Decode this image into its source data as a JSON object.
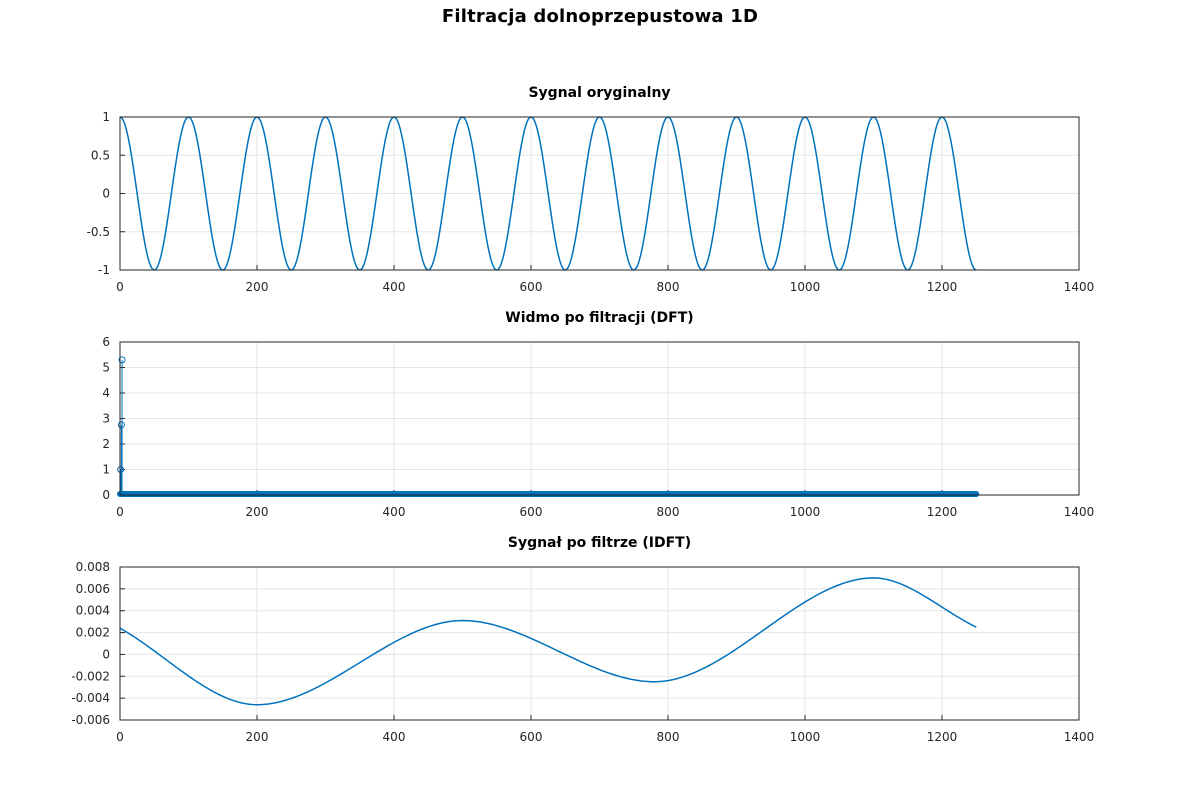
{
  "figure_title": "Filtracja dolnoprzepustowa 1D",
  "colors": {
    "line": "#0072bd",
    "grid": "#e5e5e5",
    "axes": "#262626",
    "background": "#ffffff"
  },
  "chart_data": [
    {
      "type": "line",
      "title": "Sygnal oryginalny",
      "xlabel": "",
      "ylabel": "",
      "xlim": [
        0,
        1400
      ],
      "ylim": [
        -1,
        1
      ],
      "xticks": [
        "0",
        "200",
        "400",
        "600",
        "800",
        "1000",
        "1200",
        "1400"
      ],
      "yticks": [
        "-1",
        "-0.5",
        "0",
        "0.5",
        "1"
      ],
      "grid": true,
      "series": [
        {
          "function": "cos(2*pi*n/100)",
          "x_start": 0,
          "x_end": 1250,
          "step": 1,
          "period": 100,
          "amplitude": 1
        }
      ]
    },
    {
      "type": "stem",
      "title": "Widmo po filtracji (DFT)",
      "xlabel": "",
      "ylabel": "",
      "xlim": [
        0,
        1400
      ],
      "ylim": [
        0,
        6
      ],
      "xticks": [
        "0",
        "200",
        "400",
        "600",
        "800",
        "1000",
        "1200",
        "1400"
      ],
      "yticks": [
        "0",
        "1",
        "2",
        "3",
        "4",
        "5",
        "6"
      ],
      "grid": true,
      "points": [
        {
          "x": 1,
          "y": 1.0
        },
        {
          "x": 2,
          "y": 2.75
        },
        {
          "x": 3,
          "y": 5.3
        }
      ],
      "baseline": {
        "x_start": 0,
        "x_end": 1250,
        "y": 0,
        "description": "remaining bins all zero (dense markers along baseline)"
      }
    },
    {
      "type": "line",
      "title": "Sygnał po filtrze (IDFT)",
      "xlabel": "",
      "ylabel": "",
      "xlim": [
        0,
        1400
      ],
      "ylim": [
        -0.006,
        0.008
      ],
      "xticks": [
        "0",
        "200",
        "400",
        "600",
        "800",
        "1000",
        "1200",
        "1400"
      ],
      "yticks": [
        "-0.006",
        "-0.004",
        "-0.002",
        "0",
        "0.002",
        "0.004",
        "0.006",
        "0.008"
      ],
      "grid": true,
      "series": [
        {
          "x": [
            0,
            200,
            500,
            780,
            1100,
            1250
          ],
          "y": [
            0.0024,
            -0.0046,
            0.0031,
            -0.0025,
            0.007,
            0.0025
          ]
        }
      ]
    }
  ]
}
